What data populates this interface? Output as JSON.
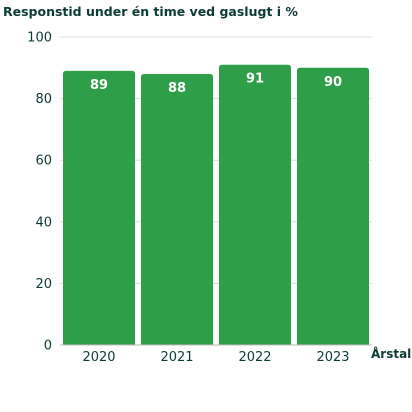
{
  "chart_data": {
    "type": "bar",
    "title": "Responstid under én time ved gaslugt i %",
    "xlabel": "Årstal",
    "ylabel": "",
    "categories": [
      "2020",
      "2021",
      "2022",
      "2023"
    ],
    "values": [
      89,
      88,
      91,
      90
    ],
    "data_labels": [
      "89",
      "88",
      "91",
      "90"
    ],
    "ylim": [
      0,
      100
    ],
    "yticks": [
      "0",
      "20",
      "40",
      "60",
      "80",
      "100"
    ],
    "bar_color": "#2e9e48",
    "text_color": "#0b3b36",
    "grid": true,
    "grid_color": "#dcdcdc"
  }
}
